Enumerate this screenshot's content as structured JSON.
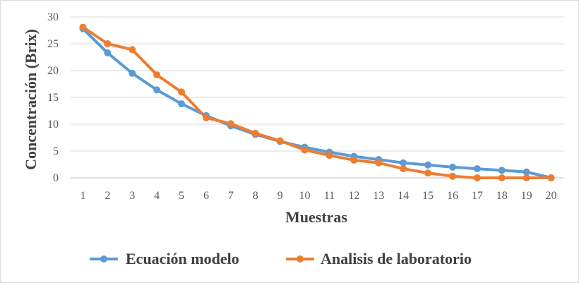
{
  "chart_data": {
    "type": "line",
    "xlabel": "Muestras",
    "ylabel": "Concentración (Brix)",
    "ylim": [
      0,
      30
    ],
    "yticks": [
      0,
      5,
      10,
      15,
      20,
      25,
      30
    ],
    "grid": true,
    "legend_position": "bottom",
    "x": [
      1,
      2,
      3,
      4,
      5,
      6,
      7,
      8,
      9,
      10,
      11,
      12,
      13,
      14,
      15,
      16,
      17,
      18,
      19,
      20
    ],
    "series": [
      {
        "name": "Ecuación modelo",
        "color": "#5b9bd5",
        "values": [
          27.8,
          23.3,
          19.5,
          16.4,
          13.8,
          11.6,
          9.7,
          8.1,
          6.8,
          5.7,
          4.8,
          4.0,
          3.4,
          2.8,
          2.4,
          2.0,
          1.7,
          1.4,
          1.1,
          0.0
        ]
      },
      {
        "name": "Analisis de laboratorio",
        "color": "#ed7d31",
        "values": [
          28.1,
          25.0,
          23.9,
          19.2,
          16.0,
          11.2,
          10.1,
          8.3,
          6.9,
          5.2,
          4.2,
          3.3,
          2.8,
          1.7,
          0.9,
          0.3,
          0.0,
          0.0,
          0.0,
          0.0
        ]
      }
    ]
  }
}
